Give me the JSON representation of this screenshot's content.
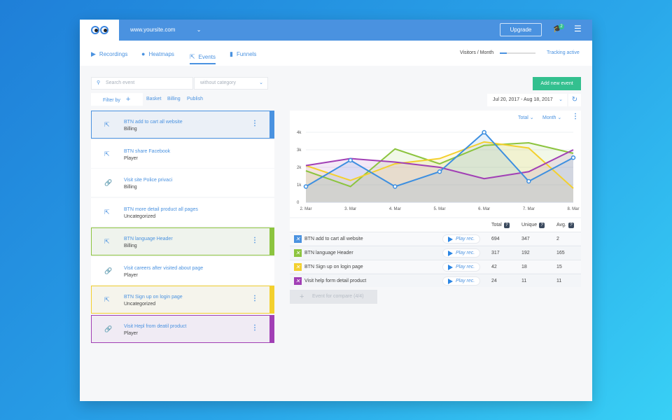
{
  "header": {
    "site": "www.yoursite.com",
    "upgrade": "Upgrade",
    "notifications": "2"
  },
  "nav": {
    "tabs": [
      {
        "label": "Recordings"
      },
      {
        "label": "Heatmaps"
      },
      {
        "label": "Events",
        "active": true
      },
      {
        "label": "Funnels"
      }
    ],
    "visitors_label": "Visitors / Month",
    "visitors_fraction": 0.2,
    "tracking": "Tracking active"
  },
  "filters": {
    "search_placeholder": "Search event",
    "category": "without category",
    "filter_by": "Filter by",
    "tags": [
      "Basket",
      "Billing",
      "Publish"
    ]
  },
  "actions": {
    "add_event": "Add new event",
    "date_range": "Jul 20, 2017 - Aug 18, 2017"
  },
  "events": [
    {
      "title": "BTN add to cart all website",
      "category": "Billing",
      "icon": "click-icon",
      "color": "#4a92e0",
      "selected": true
    },
    {
      "title": "BTN share Facebook",
      "category": "Player",
      "icon": "click-icon"
    },
    {
      "title": "Visit site Police privaci",
      "category": "Billing",
      "icon": "link-icon"
    },
    {
      "title": "BTN more detail product all pages",
      "category": "Uncategorized",
      "icon": "click-icon"
    },
    {
      "title": "BTN language Header",
      "category": "Billing",
      "icon": "click-icon",
      "color": "#8cc43f",
      "selected": true
    },
    {
      "title": "Visit careers after visited about page",
      "category": "Player",
      "icon": "link-icon"
    },
    {
      "title": "BTN Sign up on login page",
      "category": "Uncategorized",
      "icon": "click-icon",
      "color": "#f3d02e",
      "selected": true
    },
    {
      "title": "Visit Hepl from deatil product",
      "category": "Player",
      "icon": "link-icon",
      "color": "#a13fb5",
      "selected": true
    }
  ],
  "chart_controls": {
    "metric": "Total",
    "period": "Month"
  },
  "chart_data": {
    "type": "line",
    "categories": [
      "2. Mar",
      "3. Mar",
      "4. Mar",
      "5. Mar",
      "6. Mar",
      "7. Mar",
      "8. Mar"
    ],
    "ylim": [
      0,
      4000
    ],
    "yticks": [
      "0",
      "1k",
      "2k",
      "3k",
      "4k"
    ],
    "grid": true,
    "series": [
      {
        "color": "#8cc43f",
        "values": [
          1800,
          900,
          3050,
          2200,
          3250,
          3400,
          2800
        ]
      },
      {
        "color": "#f3d02e",
        "values": [
          2100,
          1250,
          2200,
          2500,
          3450,
          3100,
          800
        ]
      },
      {
        "color": "#a13fb5",
        "values": [
          2100,
          2500,
          2300,
          2000,
          1350,
          1750,
          3000
        ]
      },
      {
        "color": "#3d8fe0",
        "values": [
          900,
          2400,
          900,
          1750,
          4000,
          1200,
          2550
        ]
      }
    ]
  },
  "table": {
    "headers": [
      "Total",
      "Unique",
      "Avg."
    ],
    "play": "Play rec.",
    "rows": [
      {
        "name": "BTN add to cart all website",
        "color": "#4a92e0",
        "total": "694",
        "unique": "347",
        "avg": "2"
      },
      {
        "name": "BTN language Header",
        "color": "#8cc43f",
        "total": "317",
        "unique": "192",
        "avg": "165"
      },
      {
        "name": "BTN Sign up on login page",
        "color": "#f3d02e",
        "total": "42",
        "unique": "18",
        "avg": "15"
      },
      {
        "name": "Visit help form detail product",
        "color": "#a13fb5",
        "total": "24",
        "unique": "11",
        "avg": "11"
      }
    ],
    "compare": "Event for compare (4/4)"
  }
}
